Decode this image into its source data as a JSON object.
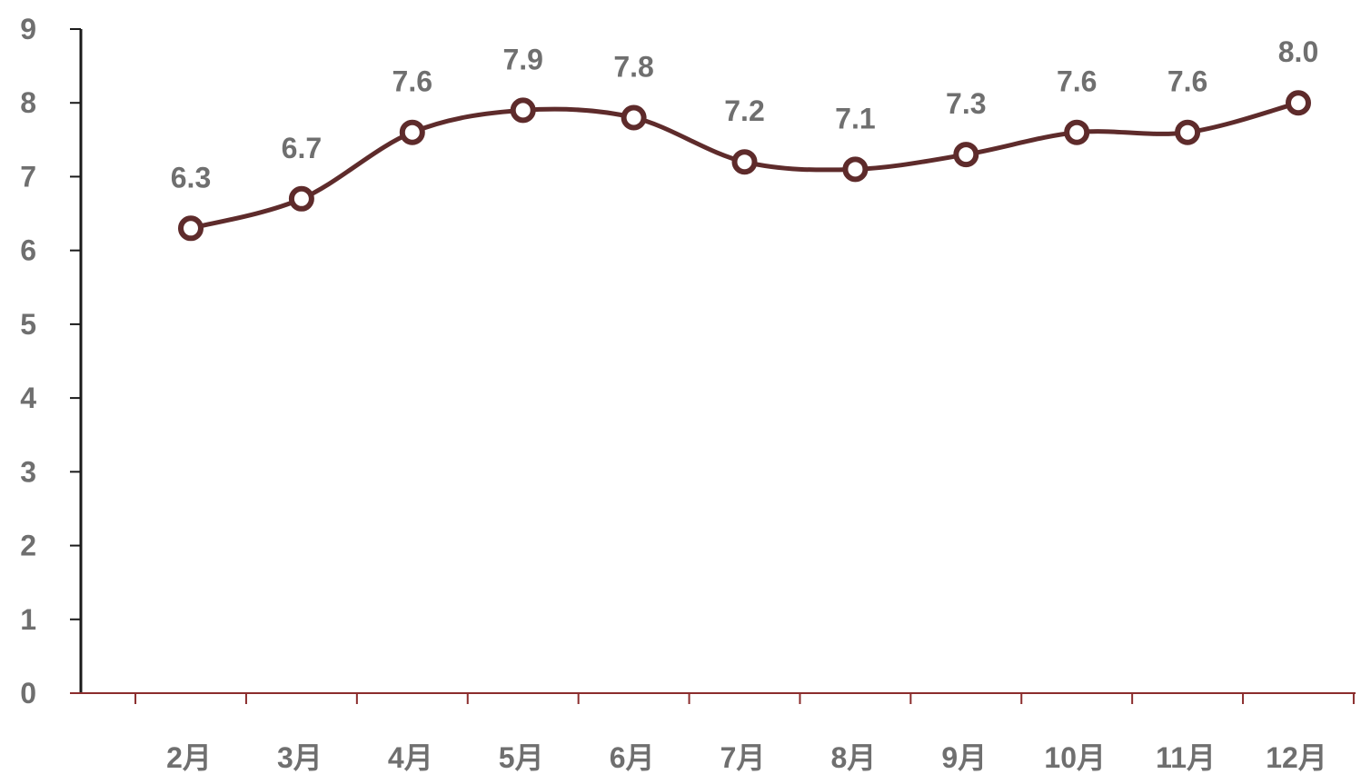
{
  "chart_data": {
    "type": "line",
    "categories": [
      "2月",
      "3月",
      "4月",
      "5月",
      "6月",
      "7月",
      "8月",
      "9月",
      "10月",
      "11月",
      "12月"
    ],
    "series": [
      {
        "values": [
          6.3,
          6.7,
          7.6,
          7.9,
          7.8,
          7.2,
          7.1,
          7.3,
          7.6,
          7.6,
          8.0
        ]
      }
    ],
    "data_labels": [
      "6.3",
      "6.7",
      "7.6",
      "7.9",
      "7.8",
      "7.2",
      "7.1",
      "7.3",
      "7.6",
      "7.6",
      "8.0"
    ],
    "y_ticks": [
      "0",
      "1",
      "2",
      "3",
      "4",
      "5",
      "6",
      "7",
      "8",
      "9"
    ],
    "ylim": [
      0,
      9
    ],
    "smooth": true,
    "marker": "hollow-circle",
    "grid": false,
    "title": "",
    "xlabel": "",
    "ylabel": "",
    "colors": {
      "line": "#5e2b2b",
      "marker_fill": "#ffffff",
      "axis": "#8b2d2d",
      "y_axis": "#1a1a1a",
      "text": "#6f6f6f"
    }
  }
}
